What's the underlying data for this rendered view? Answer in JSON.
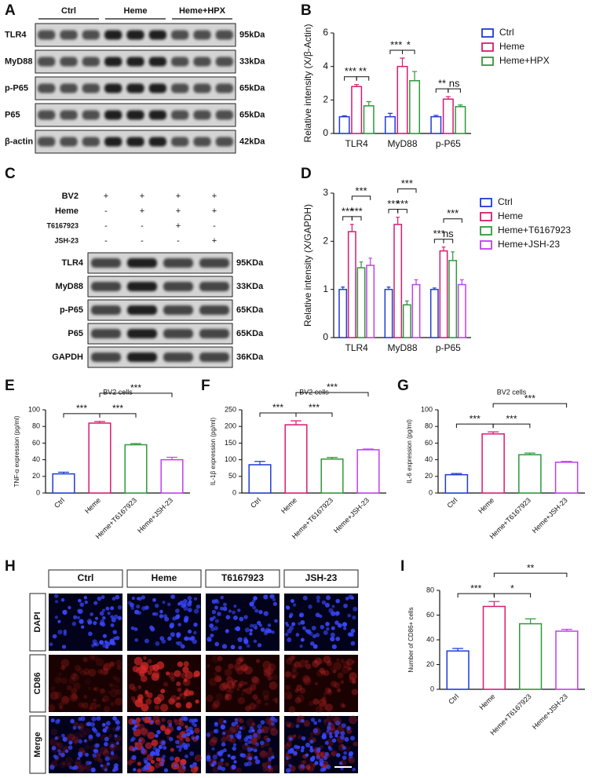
{
  "blots": [
    {
      "panel": "A",
      "groups": [
        "Ctrl",
        "Heme",
        "Heme+HPX"
      ],
      "bands": [
        {
          "name": "TLR4",
          "size": "95kDa"
        },
        {
          "name": "MyD88",
          "size": "33kDa"
        },
        {
          "name": "p-P65",
          "size": "65kDa"
        },
        {
          "name": "P65",
          "size": "65kDa"
        },
        {
          "name": "β-actin",
          "size": "42kDa"
        }
      ]
    },
    {
      "panel": "C",
      "conditions": [
        {
          "name": "BV2",
          "signs": [
            "+",
            "+",
            "+",
            "+"
          ]
        },
        {
          "name": "Heme",
          "signs": [
            "-",
            "+",
            "+",
            "+"
          ]
        },
        {
          "name": "T6167923",
          "signs": [
            "-",
            "-",
            "+",
            "-"
          ]
        },
        {
          "name": "JSH-23",
          "signs": [
            "-",
            "-",
            "-",
            "+"
          ]
        }
      ],
      "bands": [
        {
          "name": "TLR4",
          "size": "95KDa"
        },
        {
          "name": "MyD88",
          "size": "33KDa"
        },
        {
          "name": "p-P65",
          "size": "65KDa"
        },
        {
          "name": "P65",
          "size": "65KDa"
        },
        {
          "name": "GAPDH",
          "size": "36KDa"
        }
      ]
    }
  ],
  "micrographs": {
    "panel": "H",
    "columns": [
      "Ctrl",
      "Heme",
      "T6167923",
      "JSH-23"
    ],
    "rows": [
      "DAPI",
      "CD86",
      "Merge"
    ]
  },
  "chart_data": [
    {
      "type": "bar",
      "panel": "B",
      "ylabel": "Relative intensity (X/β-Actin)",
      "categories": [
        "TLR4",
        "MyD88",
        "p-P65"
      ],
      "series": [
        {
          "name": "Ctrl",
          "color": "#1f3bd6",
          "values": [
            1,
            1,
            1
          ],
          "errors": [
            0.05,
            0.2,
            0.08
          ]
        },
        {
          "name": "Heme",
          "color": "#d81b72",
          "values": [
            2.8,
            4.0,
            2.05
          ],
          "errors": [
            0.12,
            0.5,
            0.15
          ]
        },
        {
          "name": "Heme+HPX",
          "color": "#2d9a3a",
          "values": [
            1.65,
            3.15,
            1.6
          ],
          "errors": [
            0.25,
            0.55,
            0.1
          ]
        }
      ],
      "ylim": [
        0,
        6
      ],
      "yticks": [
        0,
        2,
        4,
        6
      ],
      "grid": false,
      "legend": "right",
      "annotations": [
        {
          "text": "***",
          "category": "TLR4",
          "from": "Ctrl",
          "to": "Heme"
        },
        {
          "text": "**",
          "category": "TLR4",
          "from": "Heme",
          "to": "Heme+HPX"
        },
        {
          "text": "***",
          "category": "MyD88",
          "from": "Ctrl",
          "to": "Heme"
        },
        {
          "text": "*",
          "category": "MyD88",
          "from": "Heme",
          "to": "Heme+HPX"
        },
        {
          "text": "**",
          "category": "p-P65",
          "from": "Ctrl",
          "to": "Heme"
        },
        {
          "text": "ns",
          "category": "p-P65",
          "from": "Heme",
          "to": "Heme+HPX"
        }
      ]
    },
    {
      "type": "bar",
      "panel": "D",
      "ylabel": "Relative intensity (X/GAPDH)",
      "categories": [
        "TLR4",
        "MyD88",
        "p-P65"
      ],
      "series": [
        {
          "name": "Ctrl",
          "color": "#1f3bd6",
          "values": [
            1,
            1,
            1
          ],
          "errors": [
            0.05,
            0.05,
            0.03
          ]
        },
        {
          "name": "Heme",
          "color": "#d81b72",
          "values": [
            2.2,
            2.35,
            1.8
          ],
          "errors": [
            0.15,
            0.15,
            0.08
          ]
        },
        {
          "name": "Heme+T6167923",
          "color": "#2d9a3a",
          "values": [
            1.45,
            0.68,
            1.6
          ],
          "errors": [
            0.12,
            0.08,
            0.18
          ]
        },
        {
          "name": "Heme+JSH-23",
          "color": "#c13ef0",
          "values": [
            1.5,
            1.1,
            1.1
          ],
          "errors": [
            0.15,
            0.1,
            0.1
          ]
        }
      ],
      "ylim": [
        0,
        3
      ],
      "yticks": [
        0,
        1,
        2,
        3
      ],
      "grid": false,
      "legend": "right",
      "annotations": [
        {
          "text": "***",
          "category": "TLR4",
          "from": "Ctrl",
          "to": "Heme"
        },
        {
          "text": "***",
          "category": "TLR4",
          "from": "Heme",
          "to": "Heme+T6167923"
        },
        {
          "text": "***",
          "category": "TLR4",
          "from": "Heme",
          "to": "Heme+JSH-23"
        },
        {
          "text": "***",
          "category": "MyD88",
          "from": "Ctrl",
          "to": "Heme"
        },
        {
          "text": "***",
          "category": "MyD88",
          "from": "Heme",
          "to": "Heme+T6167923"
        },
        {
          "text": "***",
          "category": "MyD88",
          "from": "Heme",
          "to": "Heme+JSH-23"
        },
        {
          "text": "***",
          "category": "p-P65",
          "from": "Ctrl",
          "to": "Heme"
        },
        {
          "text": "ns",
          "category": "p-P65",
          "from": "Heme",
          "to": "Heme+T6167923"
        },
        {
          "text": "***",
          "category": "p-P65",
          "from": "Heme",
          "to": "Heme+JSH-23"
        }
      ]
    },
    {
      "type": "bar",
      "panel": "E",
      "title": "BV2 cells",
      "ylabel": "TNF-α expression (pg/ml)",
      "categories": [
        "Ctrl",
        "Heme",
        "Heme+T6167923",
        "Heme+JSH-23"
      ],
      "values": [
        23,
        84,
        58,
        40
      ],
      "errors": [
        2,
        2,
        1.5,
        3
      ],
      "colors": [
        "#1f3bd6",
        "#d81b72",
        "#2d9a3a",
        "#c13ef0"
      ],
      "ylim": [
        0,
        100
      ],
      "yticks": [
        0,
        20,
        40,
        60,
        80,
        100
      ],
      "grid": false,
      "xtick_rotation": 45,
      "annotations": [
        {
          "text": "***",
          "from": "Ctrl",
          "to": "Heme"
        },
        {
          "text": "***",
          "from": "Heme",
          "to": "Heme+T6167923"
        },
        {
          "text": "***",
          "from": "Heme",
          "to": "Heme+JSH-23"
        }
      ]
    },
    {
      "type": "bar",
      "panel": "F",
      "title": "BV2 cells",
      "ylabel": "IL-1β expression (pg/ml)",
      "categories": [
        "Ctrl",
        "Heme",
        "Heme+T6167923",
        "Heme+JSH-23"
      ],
      "values": [
        85,
        205,
        102,
        130
      ],
      "errors": [
        10,
        12,
        5,
        2
      ],
      "colors": [
        "#1f3bd6",
        "#d81b72",
        "#2d9a3a",
        "#c13ef0"
      ],
      "ylim": [
        0,
        250
      ],
      "yticks": [
        0,
        50,
        100,
        150,
        200,
        250
      ],
      "grid": false,
      "xtick_rotation": 45,
      "annotations": [
        {
          "text": "***",
          "from": "Ctrl",
          "to": "Heme"
        },
        {
          "text": "***",
          "from": "Heme",
          "to": "Heme+T6167923"
        },
        {
          "text": "***",
          "from": "Heme",
          "to": "Heme+JSH-23"
        }
      ]
    },
    {
      "type": "bar",
      "panel": "G",
      "title": "BV2 cells",
      "ylabel": "IL-6 expression (pg/ml)",
      "categories": [
        "Ctrl",
        "Heme",
        "Heme+T6167923",
        "Heme+JSH-23"
      ],
      "values": [
        22,
        71,
        46,
        37
      ],
      "errors": [
        1.5,
        2.5,
        2,
        1
      ],
      "colors": [
        "#1f3bd6",
        "#d81b72",
        "#2d9a3a",
        "#c13ef0"
      ],
      "ylim": [
        0,
        100
      ],
      "yticks": [
        0,
        20,
        40,
        60,
        80,
        100
      ],
      "grid": false,
      "xtick_rotation": 45,
      "annotations": [
        {
          "text": "***",
          "from": "Ctrl",
          "to": "Heme"
        },
        {
          "text": "***",
          "from": "Heme",
          "to": "Heme+T6167923"
        },
        {
          "text": "***",
          "from": "Heme",
          "to": "Heme+JSH-23"
        }
      ]
    },
    {
      "type": "bar",
      "panel": "I",
      "ylabel": "Number of CD86+ cells",
      "categories": [
        "Ctrl",
        "Heme",
        "Heme+T6167923",
        "Heme+JSH-23"
      ],
      "values": [
        31,
        67,
        53,
        47
      ],
      "errors": [
        2,
        4,
        4,
        1.5
      ],
      "colors": [
        "#1f3bd6",
        "#d81b72",
        "#2d9a3a",
        "#c13ef0"
      ],
      "ylim": [
        0,
        80
      ],
      "yticks": [
        0,
        20,
        40,
        60,
        80
      ],
      "grid": false,
      "xtick_rotation": 45,
      "annotations": [
        {
          "text": "***",
          "from": "Ctrl",
          "to": "Heme"
        },
        {
          "text": "*",
          "from": "Heme",
          "to": "Heme+T6167923"
        },
        {
          "text": "**",
          "from": "Heme",
          "to": "Heme+JSH-23"
        }
      ]
    }
  ]
}
